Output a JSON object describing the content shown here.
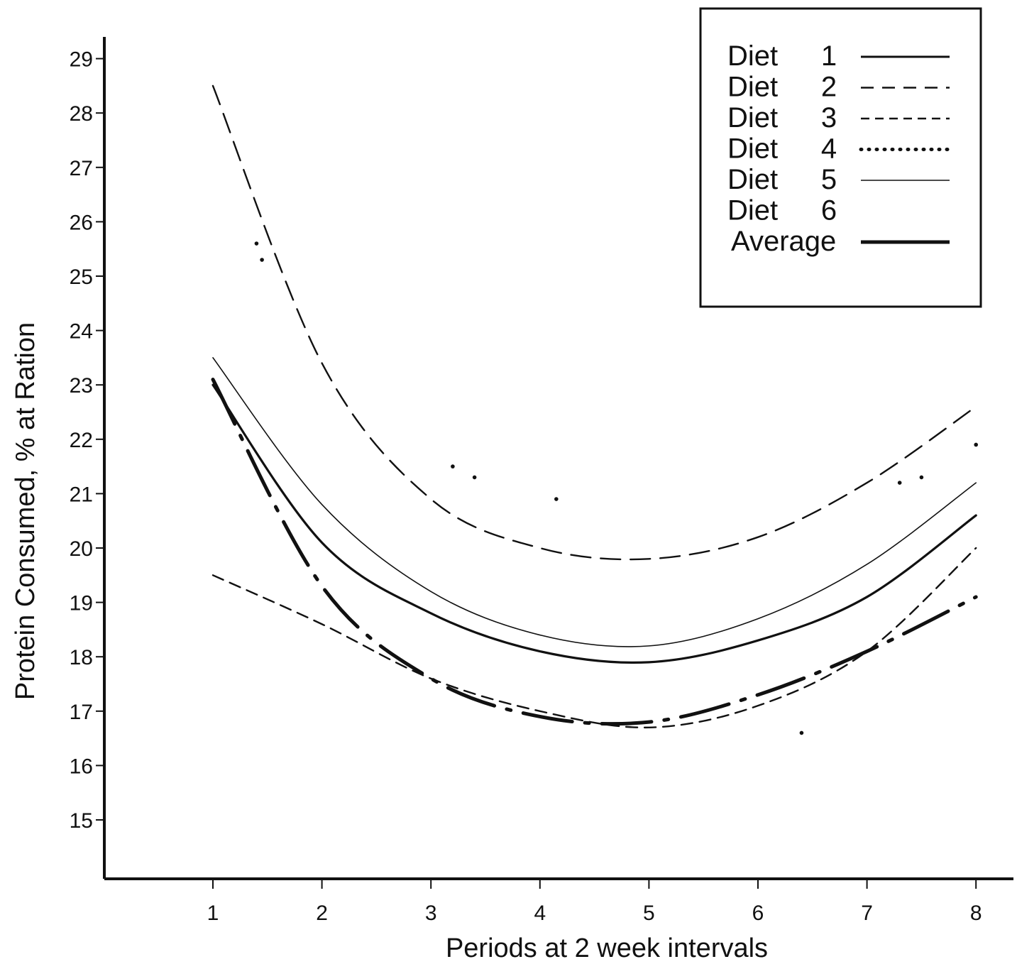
{
  "chart_data": {
    "type": "line",
    "title": "",
    "xlabel": "Periods at 2 week intervals",
    "ylabel": "Protein Consumed, % at Ration",
    "x_ticks": [
      "1",
      "2",
      "3",
      "4",
      "5",
      "6",
      "7",
      "8"
    ],
    "y_ticks": [
      "15",
      "16",
      "17",
      "18",
      "19",
      "20",
      "21",
      "22",
      "23",
      "24",
      "25",
      "26",
      "27",
      "28",
      "29"
    ],
    "xlim": [
      0,
      8.3
    ],
    "ylim": [
      14,
      29.6
    ],
    "grid": false,
    "legend_position": "top-right",
    "legend": [
      {
        "label": "Diet",
        "number": "1",
        "style": "solid"
      },
      {
        "label": "Diet",
        "number": "2",
        "style": "dashed"
      },
      {
        "label": "Diet",
        "number": "3",
        "style": "short-dashed"
      },
      {
        "label": "Diet",
        "number": "4",
        "style": "dotted"
      },
      {
        "label": "Diet",
        "number": "5",
        "style": "thin-solid"
      },
      {
        "label": "Diet",
        "number": "6",
        "style": "none"
      },
      {
        "label": "Average",
        "number": "",
        "style": "thick-solid"
      }
    ],
    "series": [
      {
        "id": "diet1",
        "x": [
          1,
          2,
          3,
          4,
          5,
          6,
          7,
          8
        ],
        "values": [
          23.0,
          20.1,
          18.8,
          18.1,
          17.9,
          18.3,
          19.1,
          20.6
        ],
        "color": "#111111"
      },
      {
        "id": "diet2",
        "x": [
          1,
          2,
          3,
          4,
          5,
          6,
          7,
          8
        ],
        "values": [
          28.5,
          23.4,
          20.9,
          20.0,
          19.8,
          20.2,
          21.2,
          22.6
        ],
        "color": "#111111"
      },
      {
        "id": "diet3",
        "x": [
          1,
          2,
          3,
          4,
          5,
          6,
          7,
          8
        ],
        "values": [
          19.5,
          18.6,
          17.6,
          17.0,
          16.7,
          17.1,
          18.1,
          20.0
        ],
        "color": "#111111"
      },
      {
        "id": "diet4",
        "x": [
          1.4,
          1.45,
          3.2,
          3.4,
          4.15,
          6.4,
          7.3,
          7.5,
          8.0
        ],
        "values": [
          25.6,
          25.3,
          21.5,
          21.3,
          20.9,
          16.6,
          21.2,
          21.3,
          21.9
        ],
        "color": "#111111"
      },
      {
        "id": "diet5",
        "x": [
          1,
          2,
          3,
          4,
          5,
          6,
          7,
          8
        ],
        "values": [
          23.5,
          20.8,
          19.2,
          18.4,
          18.2,
          18.7,
          19.7,
          21.2
        ],
        "color": "#111111"
      },
      {
        "id": "average",
        "x": [
          1,
          2,
          3,
          4,
          5,
          6,
          7,
          8
        ],
        "values": [
          23.1,
          19.3,
          17.6,
          16.9,
          16.8,
          17.3,
          18.1,
          19.1
        ],
        "color": "#111111"
      }
    ]
  }
}
